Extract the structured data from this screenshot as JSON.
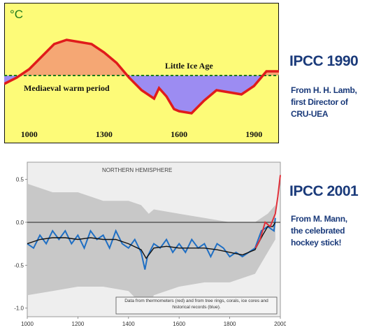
{
  "chart_data": [
    {
      "type": "line",
      "title": "",
      "ylabel": "°C",
      "xlim": [
        900,
        2000
      ],
      "x_ticks": [
        "1000",
        "1300",
        "1600",
        "1900"
      ],
      "x_tick_values": [
        1000,
        1300,
        1600,
        1900
      ],
      "annotations": [
        "Little Ice Age",
        "Mediaeval warm period"
      ],
      "baseline": 0,
      "x": [
        900,
        950,
        1000,
        1050,
        1100,
        1150,
        1200,
        1250,
        1300,
        1350,
        1400,
        1450,
        1500,
        1520,
        1550,
        1580,
        1600,
        1650,
        1700,
        1750,
        1800,
        1850,
        1900,
        1950,
        2000
      ],
      "values": [
        -0.2,
        -0.05,
        0.15,
        0.45,
        0.75,
        0.85,
        0.8,
        0.75,
        0.55,
        0.3,
        -0.05,
        -0.35,
        -0.55,
        -0.3,
        -0.5,
        -0.8,
        -0.85,
        -0.9,
        -0.6,
        -0.35,
        -0.4,
        -0.45,
        -0.25,
        0.1,
        0.1
      ],
      "colors": {
        "background": "#fdfb78",
        "line": "#e01b1b",
        "warm_fill": "#f5a774",
        "cold_fill": "#9c8cf2",
        "baseline": "#1e7a1e",
        "frame": "#111111"
      }
    },
    {
      "type": "line",
      "title": "NORTHERN HEMISPHERE",
      "xlim": [
        1000,
        2000
      ],
      "ylim": [
        -1.1,
        0.7
      ],
      "x_ticks": [
        "1000",
        "1200",
        "1400",
        "1600",
        "1800",
        "2000"
      ],
      "x_tick_values": [
        1000,
        1200,
        1400,
        1600,
        1800,
        2000
      ],
      "y_ticks": [
        "0.5",
        "0.0",
        "-0.5",
        "-1.0"
      ],
      "y_tick_values": [
        0.5,
        0,
        -0.5,
        -1.0
      ],
      "legend_note": "Data from thermometers (red) and from tree rings, corals, ice cores and historical records (blue).",
      "series": [
        {
          "name": "thermometers",
          "color": "#e0303a",
          "x": [
            1902,
            1920,
            1940,
            1960,
            1980,
            1990,
            2000
          ],
          "values": [
            -0.3,
            -0.2,
            0.0,
            -0.05,
            0.1,
            0.3,
            0.55
          ]
        },
        {
          "name": "tree rings, corals, ice cores and historical records",
          "color": "#1f6fc4",
          "x": [
            1000,
            1025,
            1050,
            1075,
            1100,
            1125,
            1150,
            1175,
            1200,
            1225,
            1250,
            1275,
            1300,
            1325,
            1350,
            1375,
            1400,
            1425,
            1450,
            1465,
            1475,
            1500,
            1525,
            1550,
            1575,
            1600,
            1625,
            1650,
            1675,
            1700,
            1725,
            1750,
            1775,
            1800,
            1825,
            1850,
            1875,
            1900,
            1925,
            1950,
            1975,
            1980
          ],
          "values": [
            -0.25,
            -0.3,
            -0.15,
            -0.25,
            -0.1,
            -0.2,
            -0.1,
            -0.25,
            -0.15,
            -0.3,
            -0.1,
            -0.2,
            -0.15,
            -0.3,
            -0.1,
            -0.25,
            -0.3,
            -0.2,
            -0.35,
            -0.55,
            -0.4,
            -0.25,
            -0.3,
            -0.2,
            -0.35,
            -0.25,
            -0.35,
            -0.2,
            -0.3,
            -0.25,
            -0.4,
            -0.25,
            -0.3,
            -0.4,
            -0.35,
            -0.4,
            -0.35,
            -0.3,
            -0.1,
            -0.05,
            -0.1,
            0.05
          ]
        }
      ],
      "smoothed": {
        "color": "#111111",
        "x": [
          1000,
          1050,
          1100,
          1150,
          1200,
          1250,
          1300,
          1350,
          1400,
          1450,
          1470,
          1500,
          1550,
          1600,
          1650,
          1700,
          1750,
          1800,
          1850,
          1900,
          1930,
          1950,
          1970,
          1980
        ],
        "values": [
          -0.25,
          -0.2,
          -0.18,
          -0.18,
          -0.2,
          -0.18,
          -0.2,
          -0.2,
          -0.25,
          -0.32,
          -0.42,
          -0.3,
          -0.28,
          -0.3,
          -0.3,
          -0.3,
          -0.32,
          -0.35,
          -0.38,
          -0.32,
          -0.15,
          -0.05,
          -0.05,
          0.0
        ]
      },
      "uncertainty_band": {
        "color": "#c8c8c8",
        "x": [
          1000,
          1100,
          1200,
          1300,
          1400,
          1450,
          1480,
          1500,
          1600,
          1700,
          1800,
          1900,
          1950,
          1980
        ],
        "upper": [
          0.45,
          0.35,
          0.35,
          0.25,
          0.25,
          0.2,
          0.1,
          0.15,
          0.1,
          0.05,
          0.0,
          0.0,
          0.1,
          0.2
        ],
        "lower": [
          -0.85,
          -0.8,
          -0.75,
          -0.75,
          -0.8,
          -0.95,
          -1.0,
          -0.85,
          -0.75,
          -0.7,
          -0.7,
          -0.6,
          -0.35,
          -0.2
        ]
      },
      "colors": {
        "background": "#eeeeee",
        "zero_line": "#222222",
        "frame": "#999999"
      }
    }
  ],
  "labels": {
    "ipcc1990": "IPCC 1990",
    "lamb_line1": "From H. H. Lamb,",
    "lamb_line2": "first Director of",
    "lamb_line3": "CRU-UEA",
    "ipcc2001": "IPCC 2001",
    "mann_line1": "From M. Mann,",
    "mann_line2": "the celebrated",
    "mann_line3": "hockey stick!"
  }
}
